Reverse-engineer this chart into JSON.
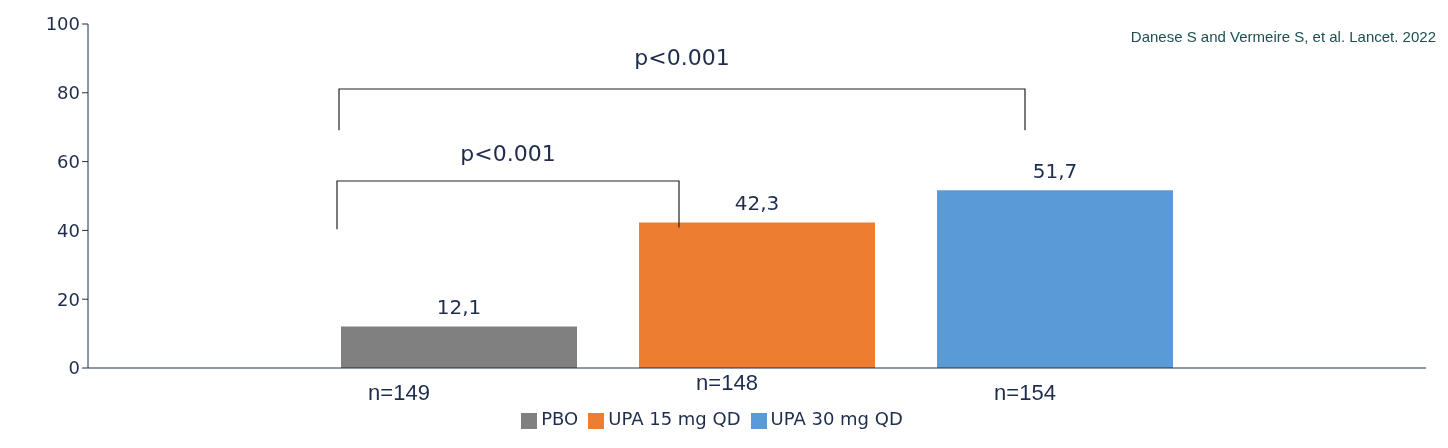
{
  "chart_data": {
    "type": "bar",
    "categories": [
      null
    ],
    "series": [
      {
        "name": "PBO",
        "color": "#808080",
        "values": [
          12.1
        ],
        "value_labels": [
          "12,1"
        ]
      },
      {
        "name": "UPA 15 mg QD",
        "color": "#ed7d31",
        "values": [
          42.3
        ],
        "value_labels": [
          "42,3"
        ]
      },
      {
        "name": "UPA 30 mg QD",
        "color": "#5b9bd5",
        "values": [
          51.7
        ],
        "value_labels": [
          "51,7"
        ]
      }
    ],
    "ylim": [
      0,
      100
    ],
    "yticks": [
      0,
      20,
      40,
      60,
      80,
      100
    ],
    "legend": "bottom",
    "annotations": [
      "p<0.001",
      "p<0.001",
      "Danese S and Vermeire S, et al. Lancet. 2022",
      "n=149",
      "n=148",
      "n=154"
    ]
  }
}
